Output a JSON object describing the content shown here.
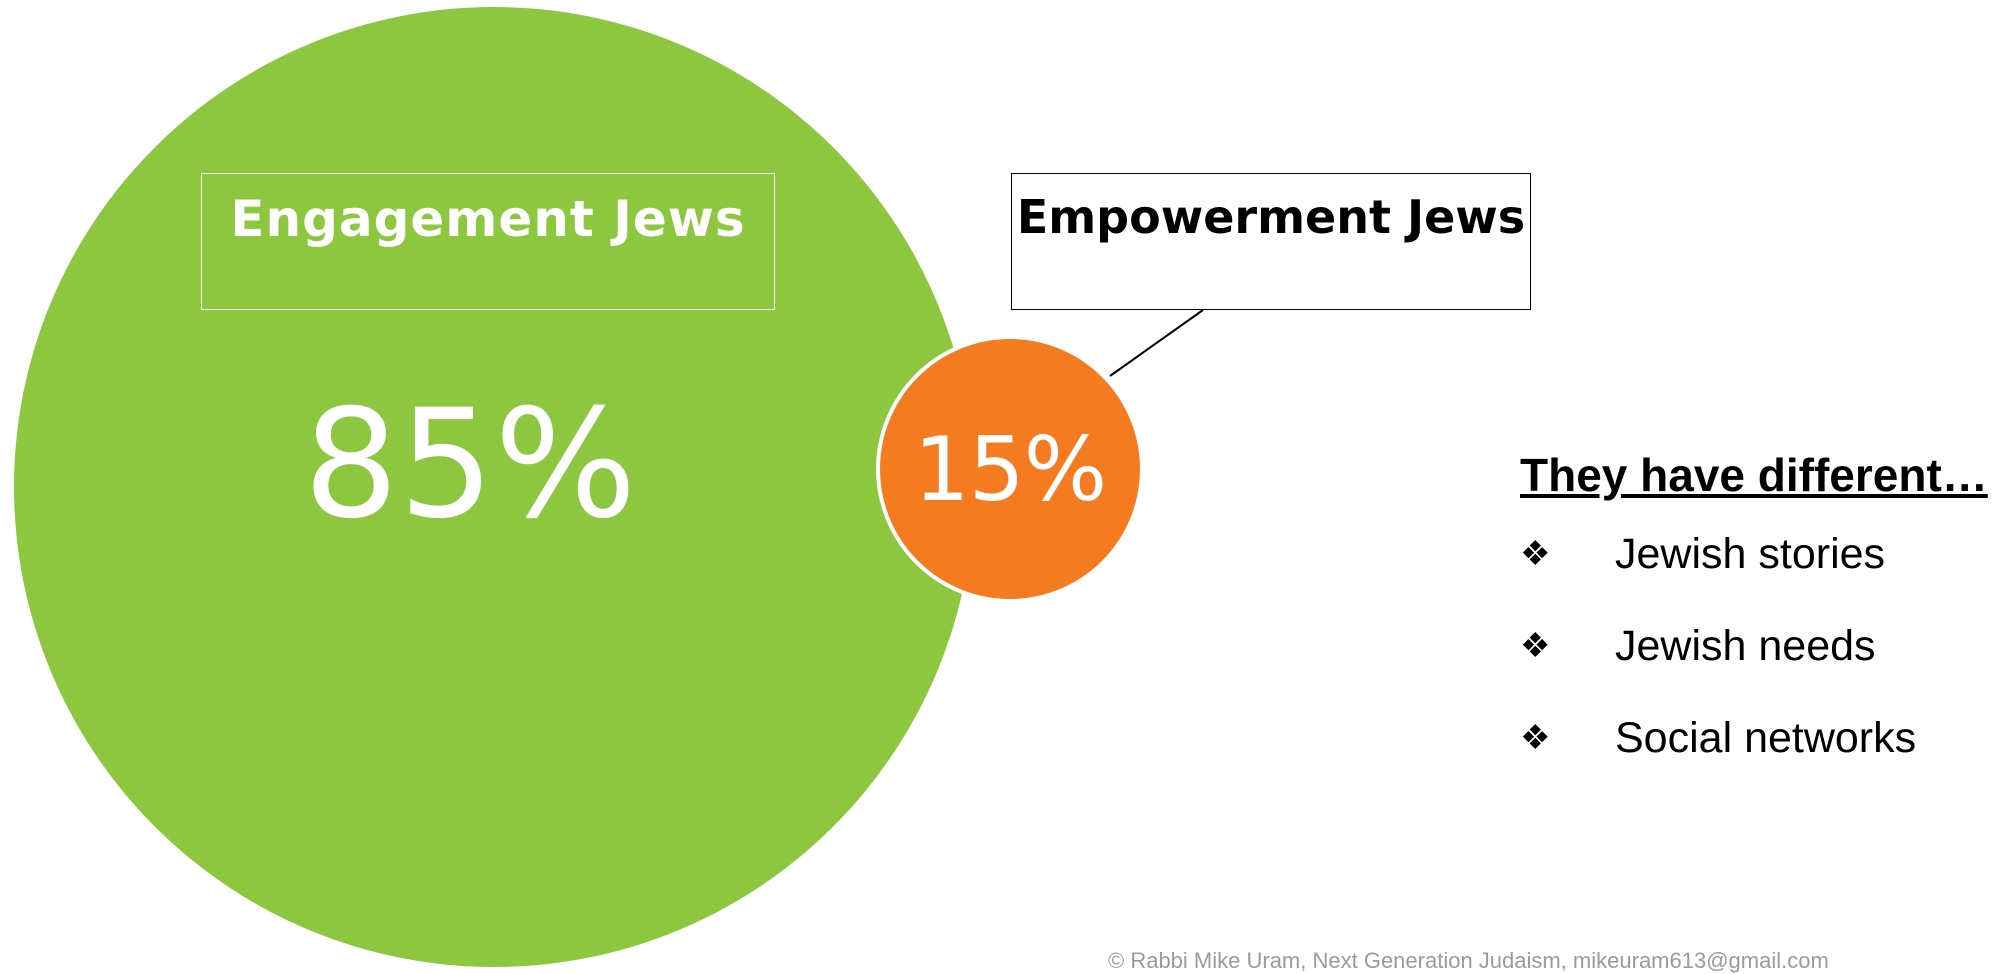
{
  "colors": {
    "engagement": "#8dc63f",
    "empowerment": "#f47b20"
  },
  "engagement": {
    "label": "Engagement Jews",
    "percent": "85%"
  },
  "empowerment": {
    "label": "Empowerment Jews",
    "percent": "15%"
  },
  "differences": {
    "title": "They have different…",
    "bullet_icon": "four-diamond-icon",
    "items": [
      "Jewish stories",
      "Jewish needs",
      "Social networks"
    ]
  },
  "footer": "© Rabbi Mike Uram, Next Generation Judaism, mikeuram613@gmail.com"
}
